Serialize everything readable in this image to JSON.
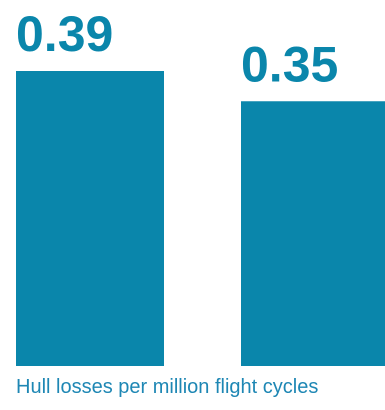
{
  "chart_data": {
    "type": "bar",
    "categories": [
      "",
      ""
    ],
    "values": [
      0.39,
      0.35
    ],
    "value_labels": [
      "0.39",
      "0.35"
    ],
    "title": "",
    "xlabel": "Hull losses per million flight cycles",
    "ylabel": "",
    "ylim": [
      0,
      0.39
    ],
    "grid": false,
    "legend": "none"
  },
  "colors": {
    "bar": "#0a86ab",
    "label": "#0a86ab",
    "caption": "#1e87b4"
  }
}
